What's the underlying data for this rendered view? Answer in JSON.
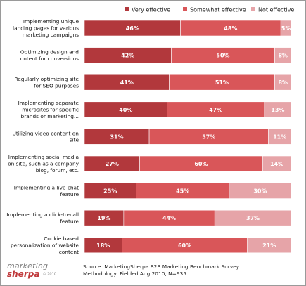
{
  "chart_data": {
    "type": "bar",
    "orientation": "horizontal",
    "stacked": true,
    "categories": [
      [
        "Implementing unique",
        "landing pages for various",
        "marketing campaigns"
      ],
      [
        "Optimizing design and",
        "content for conversions"
      ],
      [
        "Regularly optimizing site",
        "for SEO purposes"
      ],
      [
        "Implementing separate",
        "microsites for specific",
        "brands or marketing..."
      ],
      [
        "Utilizing video content on",
        "site"
      ],
      [
        "Implementing social media",
        "on site, such as a company",
        "blog, forum, etc."
      ],
      [
        "Implementing a live chat",
        "feature"
      ],
      [
        "Implementing a click-to-call",
        "feature"
      ],
      [
        "Cookie based",
        "personalization of website",
        "content"
      ]
    ],
    "series": [
      {
        "name": "Very effective",
        "color": "#b2383c",
        "values": [
          46,
          42,
          41,
          40,
          31,
          27,
          25,
          19,
          18
        ]
      },
      {
        "name": "Somewhat effective",
        "color": "#d95659",
        "values": [
          48,
          50,
          51,
          47,
          57,
          60,
          45,
          44,
          60
        ]
      },
      {
        "name": "Not effective",
        "color": "#e6a4a8",
        "values": [
          5,
          8,
          8,
          13,
          11,
          14,
          30,
          37,
          21
        ]
      }
    ],
    "value_suffix": "%",
    "legend_position": "top",
    "grid": false
  },
  "footer": {
    "logo_top": "marketing",
    "logo_bottom": "sherpa",
    "logo_year": "© 2010",
    "source": "Source: MarketingSherpa B2B Marketing Benchmark Survey",
    "methodology": "Methodology: Fielded Aug 2010, N=935"
  }
}
